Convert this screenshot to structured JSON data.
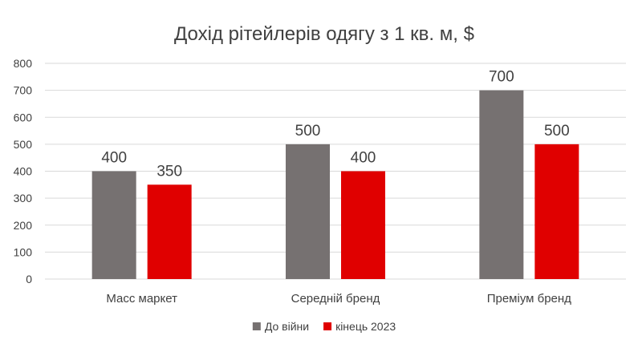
{
  "chart_data": {
    "type": "bar",
    "title": "Дохід рітейлерів одягу з 1 кв. м, $",
    "xlabel": "",
    "ylabel": "",
    "categories": [
      "Масс маркет",
      "Середній бренд",
      "Преміум бренд"
    ],
    "series": [
      {
        "name": "До війни",
        "values": [
          400,
          500,
          700
        ],
        "color": "#767171"
      },
      {
        "name": "кінець 2023",
        "values": [
          350,
          400,
          500
        ],
        "color": "#e00000"
      }
    ],
    "ylim": [
      0,
      800
    ],
    "yticks": [
      0,
      100,
      200,
      300,
      400,
      500,
      600,
      700,
      800
    ],
    "grid": true,
    "legend": "bottom",
    "data_labels": true
  }
}
